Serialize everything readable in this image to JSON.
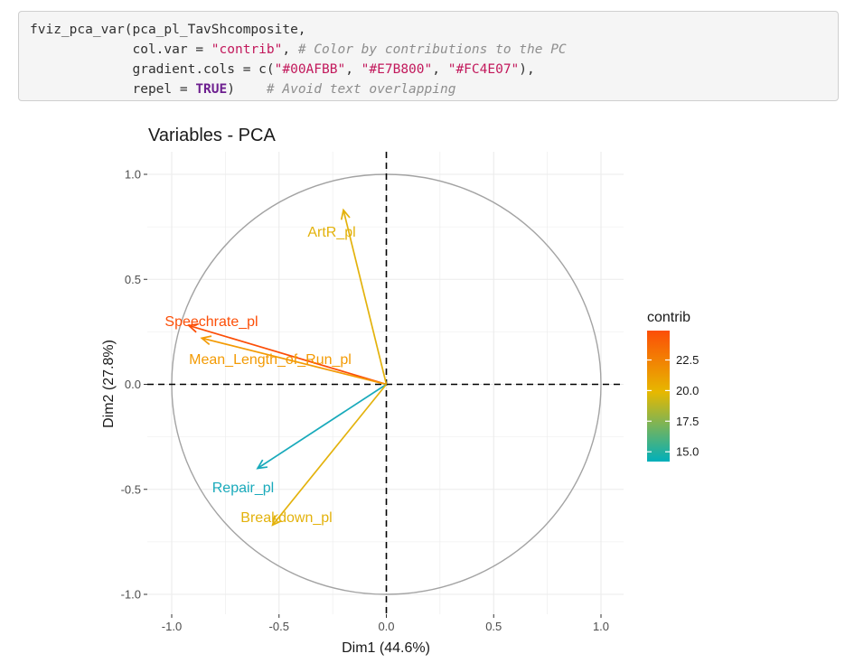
{
  "code": {
    "lines": [
      [
        {
          "t": "fviz_pca_var(pca_pl_TavShcomposite,",
          "c": ""
        }
      ],
      [
        {
          "t": "             col.var = ",
          "c": ""
        },
        {
          "t": "\"contrib\"",
          "c": "str"
        },
        {
          "t": ", ",
          "c": ""
        },
        {
          "t": "# Color by contributions to the PC",
          "c": "comment"
        }
      ],
      [
        {
          "t": "             gradient.cols = c(",
          "c": ""
        },
        {
          "t": "\"#00AFBB\"",
          "c": "str"
        },
        {
          "t": ", ",
          "c": ""
        },
        {
          "t": "\"#E7B800\"",
          "c": "str"
        },
        {
          "t": ", ",
          "c": ""
        },
        {
          "t": "\"#FC4E07\"",
          "c": "str"
        },
        {
          "t": "),",
          "c": ""
        }
      ],
      [
        {
          "t": "             repel = ",
          "c": ""
        },
        {
          "t": "TRUE",
          "c": "const"
        },
        {
          "t": ")    ",
          "c": ""
        },
        {
          "t": "# Avoid text overlapping",
          "c": "comment"
        }
      ]
    ]
  },
  "chart_data": {
    "type": "scatter",
    "title": "Variables - PCA",
    "xlabel": "Dim1 (44.6%)",
    "ylabel": "Dim2 (27.8%)",
    "xlim": [
      -1.1,
      1.1
    ],
    "ylim": [
      -1.1,
      1.1
    ],
    "x_ticks": [
      -1.0,
      -0.5,
      0.0,
      0.5,
      1.0
    ],
    "y_ticks": [
      -1.0,
      -0.5,
      0.0,
      0.5,
      1.0
    ],
    "x_tick_labels": [
      "-1.0",
      "-0.5",
      "0.0",
      "0.5",
      "1.0"
    ],
    "y_tick_labels": [
      "-1.0",
      "-0.5",
      "0.0",
      "0.5",
      "1.0"
    ],
    "grid": true,
    "unit_circle": true,
    "reference_lines": [
      0,
      0
    ],
    "variables": [
      {
        "name": "ArtR_pl",
        "x": -0.2,
        "y": 0.83,
        "contrib": 19.9,
        "color": "#E3B20C"
      },
      {
        "name": "Speechrate_pl",
        "x": -0.92,
        "y": 0.28,
        "contrib": 24.5,
        "color": "#FC4E07"
      },
      {
        "name": "Mean_Length_of_Run_pl",
        "x": -0.86,
        "y": 0.22,
        "contrib": 22.3,
        "color": "#F39A03"
      },
      {
        "name": "Repair_pl",
        "x": -0.6,
        "y": -0.4,
        "contrib": 14.5,
        "color": "#19AABB"
      },
      {
        "name": "Breakdown_pl",
        "x": -0.53,
        "y": -0.67,
        "contrib": 19.5,
        "color": "#E3B20C"
      }
    ],
    "legend": {
      "title": "contrib",
      "position": "right",
      "ticks": [
        15.0,
        17.5,
        20.0,
        22.5
      ],
      "tick_labels": [
        "15.0",
        "17.5",
        "20.0",
        "22.5"
      ],
      "range": [
        14.2,
        24.9
      ],
      "colors": [
        "#00AFBB",
        "#E7B800",
        "#FC4E07"
      ]
    }
  }
}
